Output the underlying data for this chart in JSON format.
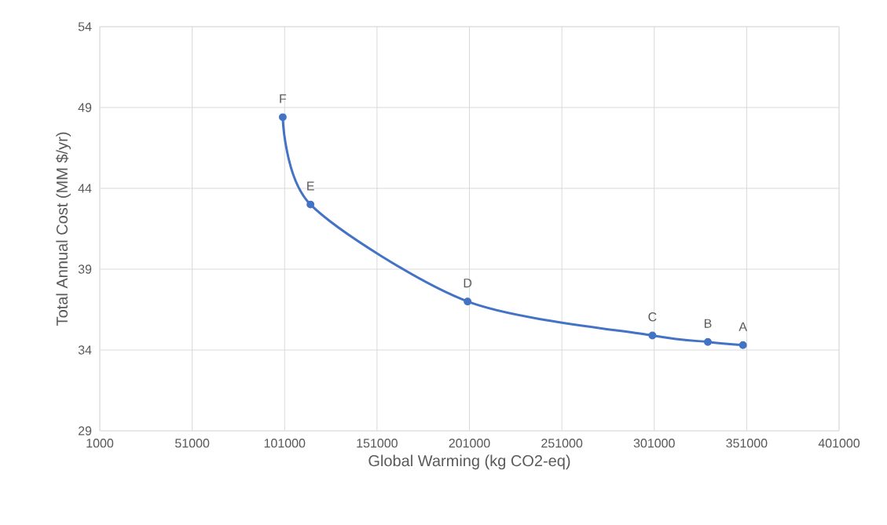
{
  "chart_data": {
    "type": "line",
    "xlabel": "Global Warming (kg CO2-eq)",
    "ylabel": "Total Annual Cost (MM $/yr)",
    "x": [
      100000,
      115000,
      200000,
      300000,
      330000,
      349000
    ],
    "series": [
      {
        "color": "#4472c4",
        "values": [
          48.4,
          43.0,
          37.0,
          34.9,
          34.5,
          34.3
        ]
      }
    ],
    "xlim": [
      1000,
      401000
    ],
    "xticks": [
      1000,
      51000,
      101000,
      151000,
      201000,
      251000,
      301000,
      351000,
      401000
    ],
    "ylim": [
      29,
      54
    ],
    "yticks": [
      29,
      34,
      39,
      44,
      49,
      54
    ],
    "grid": true,
    "marker": "circle",
    "annotations": [
      {
        "text": "F",
        "x": 100000,
        "y": 48.4
      },
      {
        "text": "E",
        "x": 115000,
        "y": 43.0
      },
      {
        "text": "D",
        "x": 200000,
        "y": 37.0
      },
      {
        "text": "C",
        "x": 300000,
        "y": 34.9
      },
      {
        "text": "B",
        "x": 330000,
        "y": 34.5
      },
      {
        "text": "A",
        "x": 349000,
        "y": 34.3
      }
    ]
  }
}
